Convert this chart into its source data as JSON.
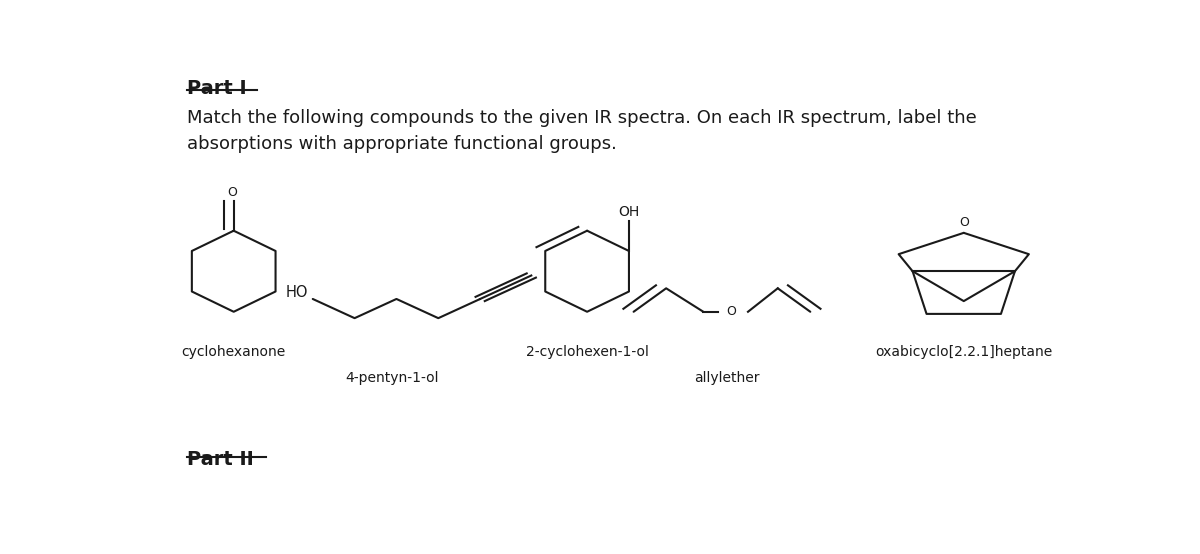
{
  "title_part1": "Part I",
  "body_text_line1": "Match the following compounds to the given IR spectra. On each IR spectrum, label the",
  "body_text_line2": "absorptions with appropriate functional groups.",
  "title_part2": "Part II",
  "bg_color": "#ffffff",
  "text_color": "#1a1a1a",
  "line_color": "#1a1a1a",
  "font_size_body": 13,
  "font_size_label": 10,
  "font_size_heading": 14,
  "font_size_atom": 9
}
